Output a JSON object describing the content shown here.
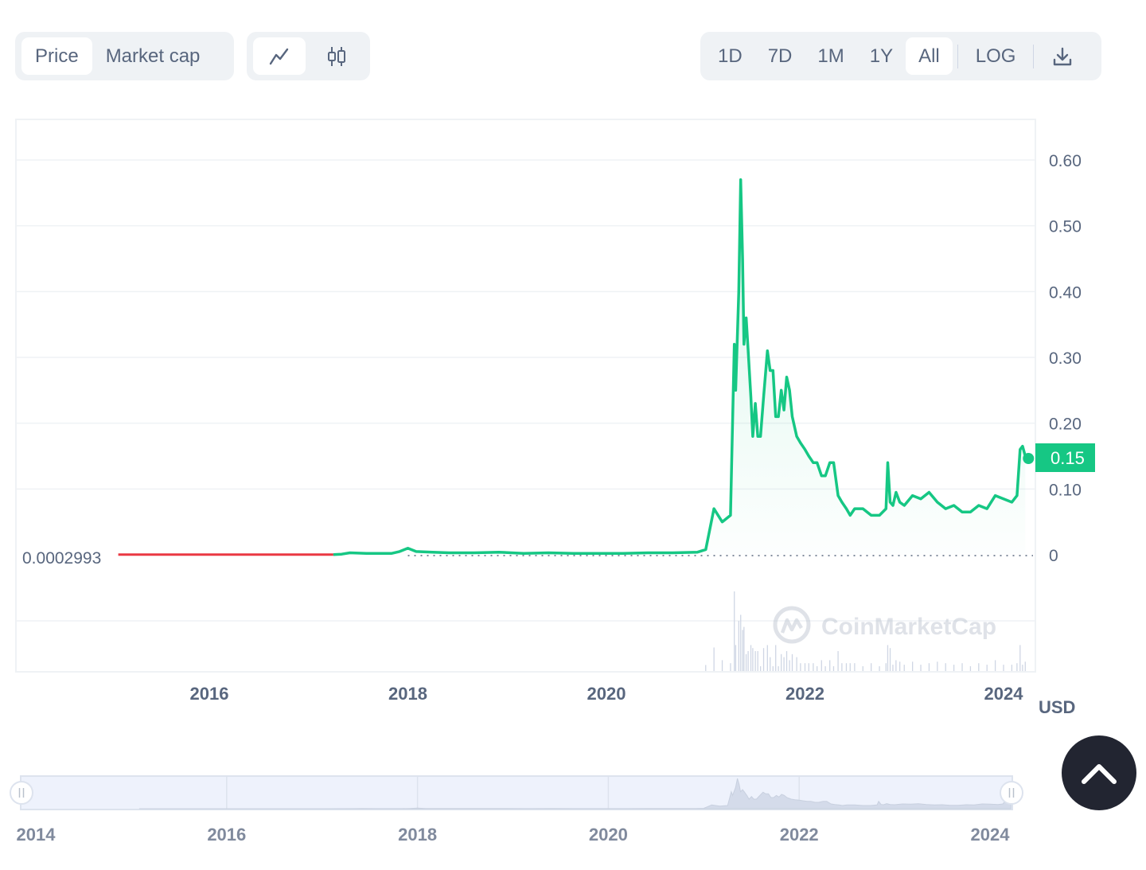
{
  "toolbar": {
    "metric_tabs": [
      "Price",
      "Market cap"
    ],
    "active_metric": "Price",
    "chart_style_icons": [
      "line-chart-icon",
      "candlestick-icon"
    ],
    "active_style": "line-chart-icon",
    "ranges": [
      "1D",
      "7D",
      "1M",
      "1Y",
      "All",
      "LOG"
    ],
    "active_range": "All",
    "download_icon": "download-icon"
  },
  "chart_data": {
    "type": "line",
    "y_ticks": [
      "0.60",
      "0.50",
      "0.40",
      "0.30",
      "0.20",
      "0.10",
      "0"
    ],
    "ylim": [
      0,
      0.6
    ],
    "x_ticks": [
      "2016",
      "2018",
      "2020",
      "2022",
      "2024"
    ],
    "xlim": [
      "2014-07",
      "2024-04"
    ],
    "currency": "USD",
    "baseline_label": "0.0002993",
    "current_price_label": "0.15",
    "watermark": "CoinMarketCap",
    "colors": {
      "up": "#16c784",
      "down": "#ea3943",
      "current_badge": "#16c784"
    },
    "series": [
      {
        "points": [
          [
            "2015-02",
            0.0003
          ],
          [
            "2015-06",
            0.0004
          ],
          [
            "2016-01",
            0.0003
          ],
          [
            "2016-06",
            0.0004
          ],
          [
            "2017-01",
            0.0003
          ],
          [
            "2017-05",
            0.001
          ],
          [
            "2017-06",
            0.003
          ],
          [
            "2017-08",
            0.002
          ],
          [
            "2017-11",
            0.002
          ],
          [
            "2017-12",
            0.005
          ],
          [
            "2018-01",
            0.01
          ],
          [
            "2018-02",
            0.005
          ],
          [
            "2018-04",
            0.004
          ],
          [
            "2018-06",
            0.003
          ],
          [
            "2018-09",
            0.003
          ],
          [
            "2018-12",
            0.004
          ],
          [
            "2019-03",
            0.002
          ],
          [
            "2019-06",
            0.003
          ],
          [
            "2019-09",
            0.002
          ],
          [
            "2019-12",
            0.002
          ],
          [
            "2020-03",
            0.002
          ],
          [
            "2020-06",
            0.003
          ],
          [
            "2020-09",
            0.003
          ],
          [
            "2020-12",
            0.004
          ],
          [
            "2021-01",
            0.008
          ],
          [
            "2021-02",
            0.07
          ],
          [
            "2021-03",
            0.05
          ],
          [
            "2021-04",
            0.06
          ],
          [
            "2021-04-15",
            0.32
          ],
          [
            "2021-04-20",
            0.25
          ],
          [
            "2021-05-01",
            0.4
          ],
          [
            "2021-05-08",
            0.57
          ],
          [
            "2021-05-15",
            0.45
          ],
          [
            "2021-05-20",
            0.32
          ],
          [
            "2021-05-28",
            0.36
          ],
          [
            "2021-06-05",
            0.31
          ],
          [
            "2021-06-15",
            0.24
          ],
          [
            "2021-06-22",
            0.18
          ],
          [
            "2021-07-01",
            0.23
          ],
          [
            "2021-07-10",
            0.18
          ],
          [
            "2021-07-20",
            0.18
          ],
          [
            "2021-08-01",
            0.24
          ],
          [
            "2021-08-15",
            0.31
          ],
          [
            "2021-08-25",
            0.28
          ],
          [
            "2021-09-05",
            0.28
          ],
          [
            "2021-09-15",
            0.21
          ],
          [
            "2021-09-25",
            0.21
          ],
          [
            "2021-10-05",
            0.25
          ],
          [
            "2021-10-15",
            0.22
          ],
          [
            "2021-10-25",
            0.27
          ],
          [
            "2021-11-05",
            0.25
          ],
          [
            "2021-11-15",
            0.21
          ],
          [
            "2021-12-01",
            0.18
          ],
          [
            "2021-12-15",
            0.17
          ],
          [
            "2022-01-01",
            0.16
          ],
          [
            "2022-01-15",
            0.15
          ],
          [
            "2022-02-01",
            0.14
          ],
          [
            "2022-02-15",
            0.14
          ],
          [
            "2022-03-01",
            0.12
          ],
          [
            "2022-03-15",
            0.12
          ],
          [
            "2022-04-01",
            0.14
          ],
          [
            "2022-04-15",
            0.14
          ],
          [
            "2022-05-01",
            0.09
          ],
          [
            "2022-05-15",
            0.08
          ],
          [
            "2022-06-01",
            0.07
          ],
          [
            "2022-06-15",
            0.06
          ],
          [
            "2022-07-01",
            0.07
          ],
          [
            "2022-08-01",
            0.07
          ],
          [
            "2022-09-01",
            0.06
          ],
          [
            "2022-10-01",
            0.06
          ],
          [
            "2022-10-25",
            0.07
          ],
          [
            "2022-11-01",
            0.14
          ],
          [
            "2022-11-10",
            0.08
          ],
          [
            "2022-11-20",
            0.075
          ],
          [
            "2022-12-01",
            0.095
          ],
          [
            "2022-12-15",
            0.08
          ],
          [
            "2023-01-01",
            0.075
          ],
          [
            "2023-02-01",
            0.09
          ],
          [
            "2023-03-01",
            0.085
          ],
          [
            "2023-04-01",
            0.095
          ],
          [
            "2023-05-01",
            0.08
          ],
          [
            "2023-06-01",
            0.07
          ],
          [
            "2023-07-01",
            0.075
          ],
          [
            "2023-08-01",
            0.065
          ],
          [
            "2023-09-01",
            0.065
          ],
          [
            "2023-10-01",
            0.075
          ],
          [
            "2023-11-01",
            0.07
          ],
          [
            "2023-12-01",
            0.09
          ],
          [
            "2024-01-01",
            0.085
          ],
          [
            "2024-02-01",
            0.08
          ],
          [
            "2024-02-20",
            0.09
          ],
          [
            "2024-03-01",
            0.16
          ],
          [
            "2024-03-10",
            0.165
          ],
          [
            "2024-03-20",
            0.15
          ]
        ]
      }
    ]
  },
  "navigator": {
    "x_ticks": [
      "2014",
      "2016",
      "2018",
      "2020",
      "2022",
      "2024"
    ]
  },
  "scroll_top_icon": "chevron-up-icon"
}
